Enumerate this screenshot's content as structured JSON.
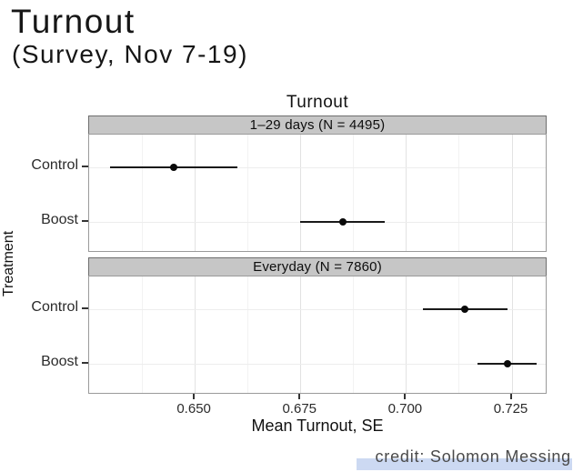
{
  "header": {
    "title": "Turnout",
    "subtitle": "(Survey, Nov 7-19)"
  },
  "credit": "credit: Solomon Messing",
  "colors": {
    "strip_fill": "#c6c6c6",
    "strip_border": "#6e6e6e",
    "panel_border": "#9a9a9a",
    "point": "#0a0a0a",
    "credit_highlight": "#ccd9f2"
  },
  "chart_data": {
    "type": "scatter",
    "title": "Turnout",
    "xlabel": "Mean Turnout, SE",
    "ylabel": "Treatment",
    "xlim": [
      0.625,
      0.7335
    ],
    "x_ticks": [
      0.65,
      0.675,
      0.7,
      0.725
    ],
    "x_tick_labels": [
      "0.650",
      "0.675",
      "0.700",
      "0.725"
    ],
    "x_minor_gridlines": [
      0.6375,
      0.6625,
      0.6875,
      0.7125
    ],
    "categories": [
      "Control",
      "Boost"
    ],
    "grid": true,
    "legend": "none",
    "facets": [
      {
        "label": "1–29 days (N = 4495)",
        "points": [
          {
            "treatment": "Control",
            "mean": 0.645,
            "lo": 0.63,
            "hi": 0.66
          },
          {
            "treatment": "Boost",
            "mean": 0.685,
            "lo": 0.675,
            "hi": 0.695
          }
        ]
      },
      {
        "label": "Everyday (N = 7860)",
        "points": [
          {
            "treatment": "Control",
            "mean": 0.714,
            "lo": 0.704,
            "hi": 0.724
          },
          {
            "treatment": "Boost",
            "mean": 0.724,
            "lo": 0.717,
            "hi": 0.731
          }
        ]
      }
    ]
  }
}
